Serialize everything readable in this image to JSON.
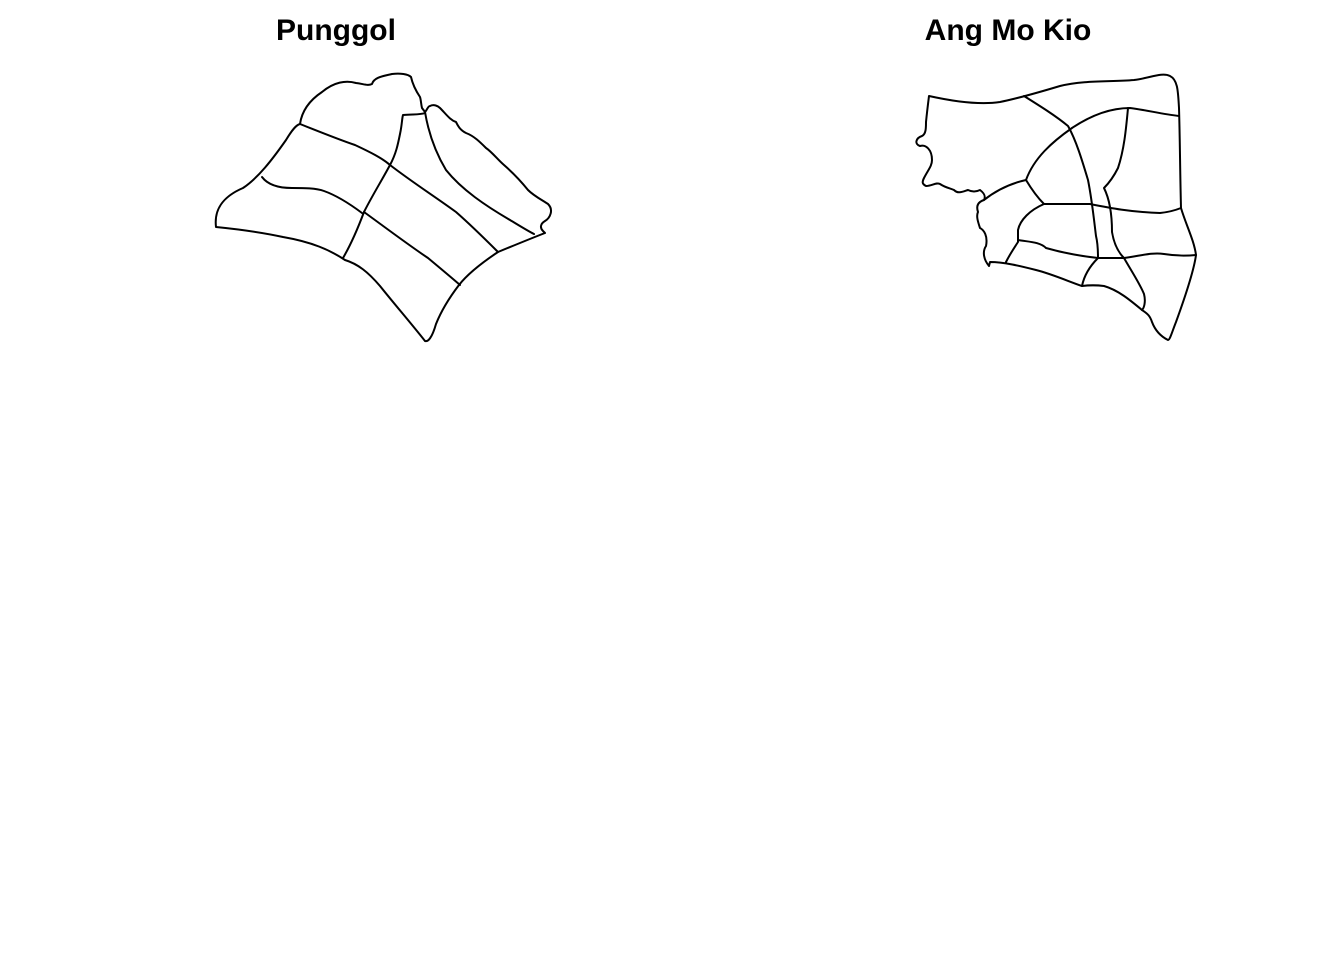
{
  "maps": [
    {
      "title": "Punggol"
    },
    {
      "title": "Ang Mo Kio"
    }
  ],
  "colors": {
    "background": "#ffffff",
    "stroke": "#000000",
    "title": "#000000"
  }
}
